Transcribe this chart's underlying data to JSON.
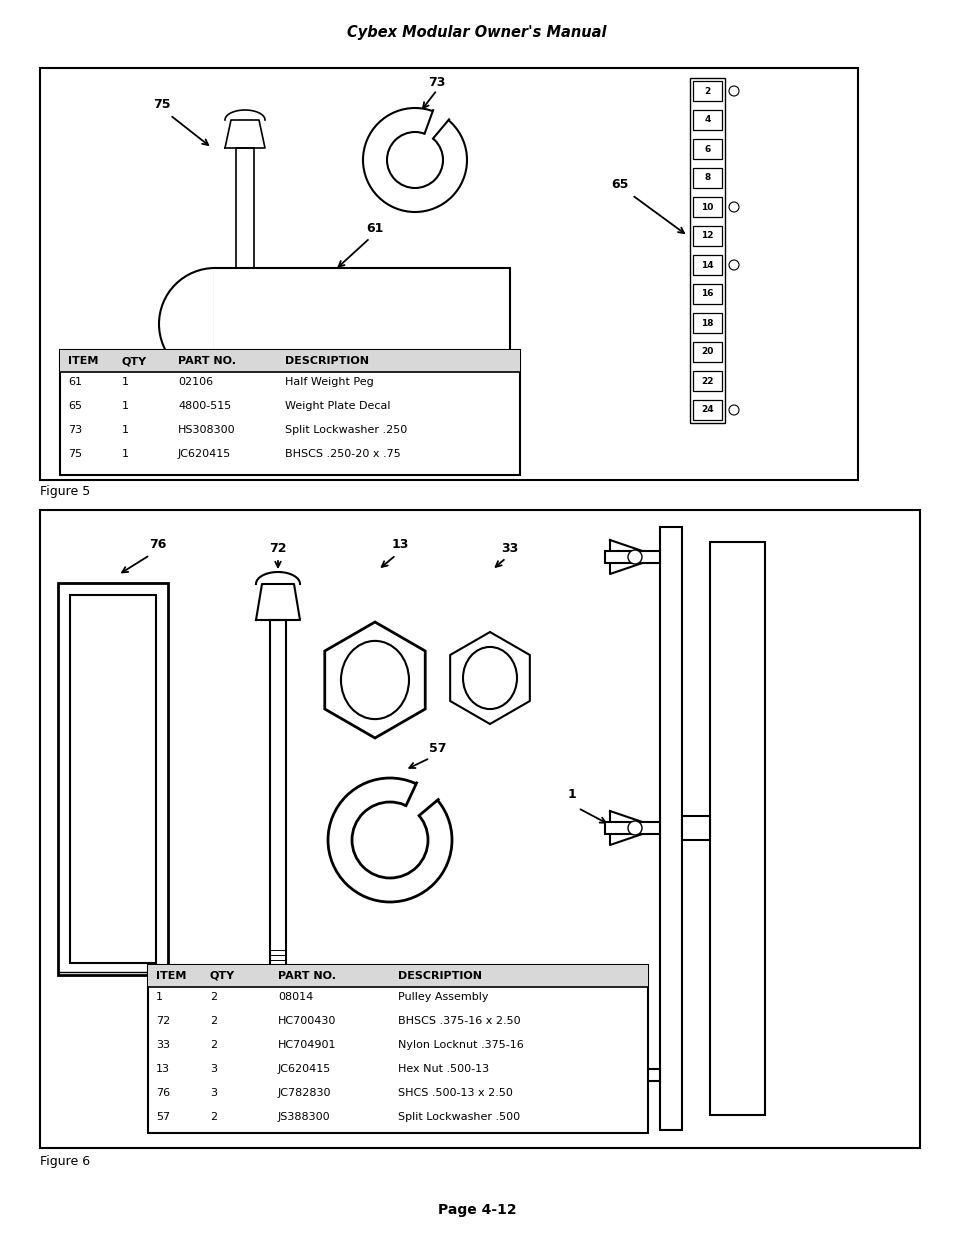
{
  "title": "Cybex Modular Owner's Manual",
  "page_label": "Page 4-12",
  "figure5_label": "Figure 5",
  "figure6_label": "Figure 6",
  "fig5_table_headers": [
    "ITEM",
    "QTY",
    "PART NO.",
    "DESCRIPTION"
  ],
  "fig5_table_rows": [
    [
      "61",
      "1",
      "02106",
      "Half Weight Peg"
    ],
    [
      "65",
      "1",
      "4800-515",
      "Weight Plate Decal"
    ],
    [
      "73",
      "1",
      "HS308300",
      "Split Lockwasher .250"
    ],
    [
      "75",
      "1",
      "JC620415",
      "BHSCS .250-20 x .75"
    ]
  ],
  "fig6_table_headers": [
    "ITEM",
    "QTY",
    "PART NO.",
    "DESCRIPTION"
  ],
  "fig6_table_rows": [
    [
      "1",
      "2",
      "08014",
      "Pulley Assembly"
    ],
    [
      "72",
      "2",
      "HC700430",
      "BHSCS .375-16 x 2.50"
    ],
    [
      "33",
      "2",
      "HC704901",
      "Nylon Locknut .375-16"
    ],
    [
      "13",
      "3",
      "JC620415",
      "Hex Nut .500-13"
    ],
    [
      "76",
      "3",
      "JC782830",
      "SHCS .500-13 x 2.50"
    ],
    [
      "57",
      "2",
      "JS388300",
      "Split Lockwasher .500"
    ]
  ],
  "weight_numbers": [
    2,
    4,
    6,
    8,
    10,
    12,
    14,
    16,
    18,
    20,
    22,
    24
  ],
  "weight_circle_rows": [
    2,
    10,
    14,
    24
  ],
  "bg_color": "#ffffff"
}
